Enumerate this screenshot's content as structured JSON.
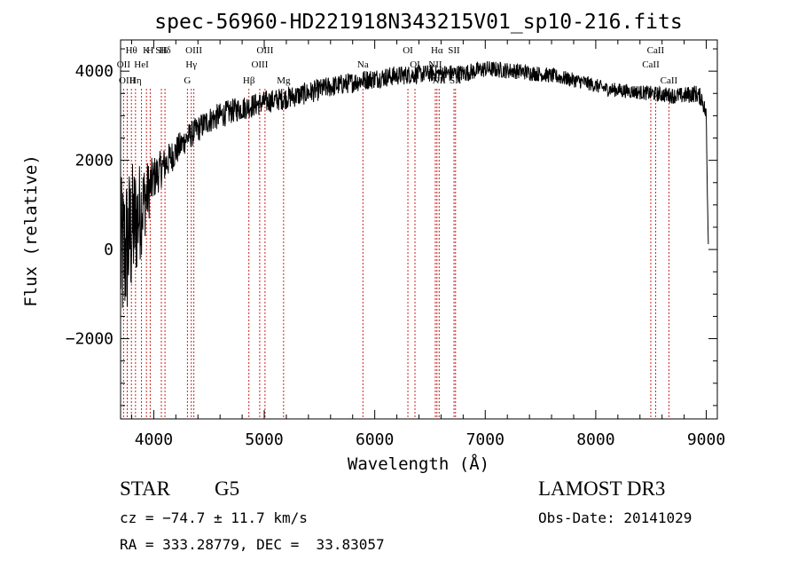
{
  "chart_data": {
    "type": "line",
    "title": "spec-56960-HD221918N343215V01_sp10-216.fits",
    "xlabel": "Wavelength (Å)",
    "ylabel": "Flux (relative)",
    "xlim": [
      3700,
      9100
    ],
    "ylim": [
      -3800,
      4700
    ],
    "x_ticks": [
      4000,
      5000,
      6000,
      7000,
      8000,
      9000
    ],
    "x_tick_labels": [
      "4000",
      "5000",
      "6000",
      "7000",
      "8000",
      "9000"
    ],
    "y_ticks": [
      -2000,
      0,
      2000,
      4000
    ],
    "y_tick_labels": [
      "−2000",
      "0",
      "2000",
      "4000"
    ],
    "spectrum_trend": {
      "wavelength": [
        3700,
        3750,
        3800,
        3850,
        3900,
        3950,
        4000,
        4100,
        4200,
        4300,
        4400,
        4500,
        4700,
        5000,
        5300,
        5600,
        5900,
        6200,
        6500,
        6800,
        7000,
        7300,
        7600,
        7900,
        8100,
        8300,
        8500,
        8700,
        8800,
        8900,
        8960,
        9000,
        9010,
        9020
      ],
      "flux": [
        -200,
        0,
        400,
        700,
        1000,
        1300,
        1600,
        1900,
        2200,
        2500,
        2700,
        2900,
        3100,
        3300,
        3450,
        3650,
        3800,
        3900,
        3950,
        3950,
        4050,
        4000,
        3900,
        3750,
        3600,
        3550,
        3500,
        3450,
        3450,
        3500,
        3400,
        3000,
        1200,
        0
      ],
      "noise_amplitude": [
        1800,
        1800,
        1600,
        1300,
        1000,
        700,
        500,
        400,
        350,
        300,
        300,
        300,
        280,
        260,
        250,
        240,
        230,
        220,
        200,
        200,
        190,
        180,
        170,
        160,
        160,
        160,
        170,
        180,
        190,
        200,
        200,
        200,
        0,
        0
      ]
    },
    "line_markers": [
      {
        "label": "Hθ",
        "wavelength": 3798
      },
      {
        "label": "OII",
        "wavelength": 3727
      },
      {
        "label": "OIII",
        "wavelength": 3760
      },
      {
        "label": "K",
        "wavelength": 3934
      },
      {
        "label": "HeI",
        "wavelength": 3889
      },
      {
        "label": "Hη",
        "wavelength": 3835
      },
      {
        "label": "SII",
        "wavelength": 4069
      },
      {
        "label": "H",
        "wavelength": 3968
      },
      {
        "label": "Hδ",
        "wavelength": 4102
      },
      {
        "label": "OIII",
        "wavelength": 4363
      },
      {
        "label": "Hγ",
        "wavelength": 4340
      },
      {
        "label": "G",
        "wavelength": 4305
      },
      {
        "label": "OIII",
        "wavelength": 5007
      },
      {
        "label": "OIII",
        "wavelength": 4959
      },
      {
        "label": "Hβ",
        "wavelength": 4861
      },
      {
        "label": "Mg",
        "wavelength": 5175
      },
      {
        "label": "Na",
        "wavelength": 5893
      },
      {
        "label": "OI",
        "wavelength": 6300
      },
      {
        "label": "OI",
        "wavelength": 6364
      },
      {
        "label": "Hα",
        "wavelength": 6563
      },
      {
        "label": "SII",
        "wavelength": 6717
      },
      {
        "label": "NII",
        "wavelength": 6548
      },
      {
        "label": "NII",
        "wavelength": 6583
      },
      {
        "label": "SII",
        "wavelength": 6731
      },
      {
        "label": "CaII",
        "wavelength": 8542
      },
      {
        "label": "CaII",
        "wavelength": 8498
      },
      {
        "label": "CaII",
        "wavelength": 8662
      }
    ],
    "colors": {
      "spectrum": "#000000",
      "line_markers": "#cc2222",
      "axes": "#000000"
    }
  },
  "info": {
    "object_class": "STAR",
    "subclass": "G5",
    "survey": "LAMOST DR3",
    "redshift": "cz = −74.7 ± 11.7 km/s",
    "obs_date": "Obs-Date: 20141029",
    "coords": "RA = 333.28779, DEC =  33.83057"
  }
}
